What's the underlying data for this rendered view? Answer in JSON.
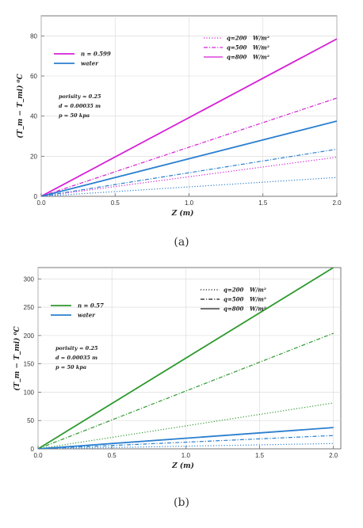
{
  "chart_data": [
    {
      "type": "line",
      "panel_caption": "(a)",
      "xlabel": "Z  (m)",
      "ylabel": "(T_m − T_mi) ⁰C",
      "xlim": [
        0,
        2.0
      ],
      "ylim": [
        0,
        90
      ],
      "xticks": [
        "0.0",
        "0.5",
        "1.0",
        "1.5",
        "2.0"
      ],
      "yticks": [
        "0",
        "20",
        "40",
        "60",
        "80"
      ],
      "x": [
        0,
        2.0
      ],
      "series": [
        {
          "name": "n = 0.599",
          "color": "#d61fd6",
          "style": "solid",
          "values": [
            0,
            78.5
          ]
        },
        {
          "color": "#d61fd6",
          "style": "dashdot",
          "values": [
            0,
            49
          ]
        },
        {
          "color": "#d61fd6",
          "style": "dotted",
          "values": [
            0,
            19.5
          ]
        },
        {
          "name": "water",
          "color": "#2a7fcf",
          "style": "solid",
          "values": [
            0,
            37.5
          ]
        },
        {
          "color": "#2a7fcf",
          "style": "dashdot",
          "values": [
            0,
            23.5
          ]
        },
        {
          "color": "#2a7fcf",
          "style": "dotted",
          "values": [
            0,
            9.4
          ]
        }
      ],
      "legend_left": [
        {
          "label": "n = 0.599",
          "color": "#d61fd6"
        },
        {
          "label": "water",
          "color": "#2a7fcf"
        }
      ],
      "legend_right": [
        {
          "label": "q=200",
          "unit": "W/m²",
          "style": "dotted"
        },
        {
          "label": "q=500",
          "unit": "W/m²",
          "style": "dashdot"
        },
        {
          "label": "q=800",
          "unit": "W/m²",
          "style": "solid"
        }
      ],
      "legend_right_color": "#d61fd6",
      "annotations": [
        "porisity = 0.25",
        "d = 0.00035  m",
        "p = 50 kpa"
      ],
      "grid": true
    },
    {
      "type": "line",
      "panel_caption": "(b)",
      "xlabel": "Z  (m)",
      "ylabel": "(T_m − T_mi) ⁰C",
      "xlim": [
        0,
        2.05
      ],
      "ylim": [
        0,
        320
      ],
      "xticks": [
        "0.0",
        "0.5",
        "1.0",
        "1.5",
        "2.0"
      ],
      "yticks": [
        "0",
        "50",
        "100",
        "150",
        "200",
        "250",
        "300"
      ],
      "x": [
        0,
        2.0
      ],
      "series": [
        {
          "name": "n = 0.57",
          "color": "#2e9a2e",
          "style": "solid",
          "values": [
            0,
            320
          ]
        },
        {
          "color": "#2e9a2e",
          "style": "dashdot",
          "values": [
            0,
            204
          ]
        },
        {
          "color": "#2e9a2e",
          "style": "dotted",
          "values": [
            0,
            81
          ]
        },
        {
          "name": "water",
          "color": "#2a7fcf",
          "style": "solid",
          "values": [
            0,
            37.5
          ]
        },
        {
          "color": "#2a7fcf",
          "style": "dashdot",
          "values": [
            0,
            23.5
          ]
        },
        {
          "color": "#2a7fcf",
          "style": "dotted",
          "values": [
            0,
            9.4
          ]
        }
      ],
      "legend_left": [
        {
          "label": "n = 0.57",
          "color": "#2e9a2e"
        },
        {
          "label": "water",
          "color": "#2a7fcf"
        }
      ],
      "legend_right": [
        {
          "label": "q=200",
          "unit": "W/m²",
          "style": "dotted"
        },
        {
          "label": "q=500",
          "unit": "W/m²",
          "style": "dashdot"
        },
        {
          "label": "q=800",
          "unit": "W/m²",
          "style": "solid"
        }
      ],
      "legend_right_color": "#1a1a1a",
      "annotations": [
        "porisity = 0.25",
        "d = 0.00035  m",
        "p = 50 kpa"
      ],
      "grid": true
    }
  ]
}
